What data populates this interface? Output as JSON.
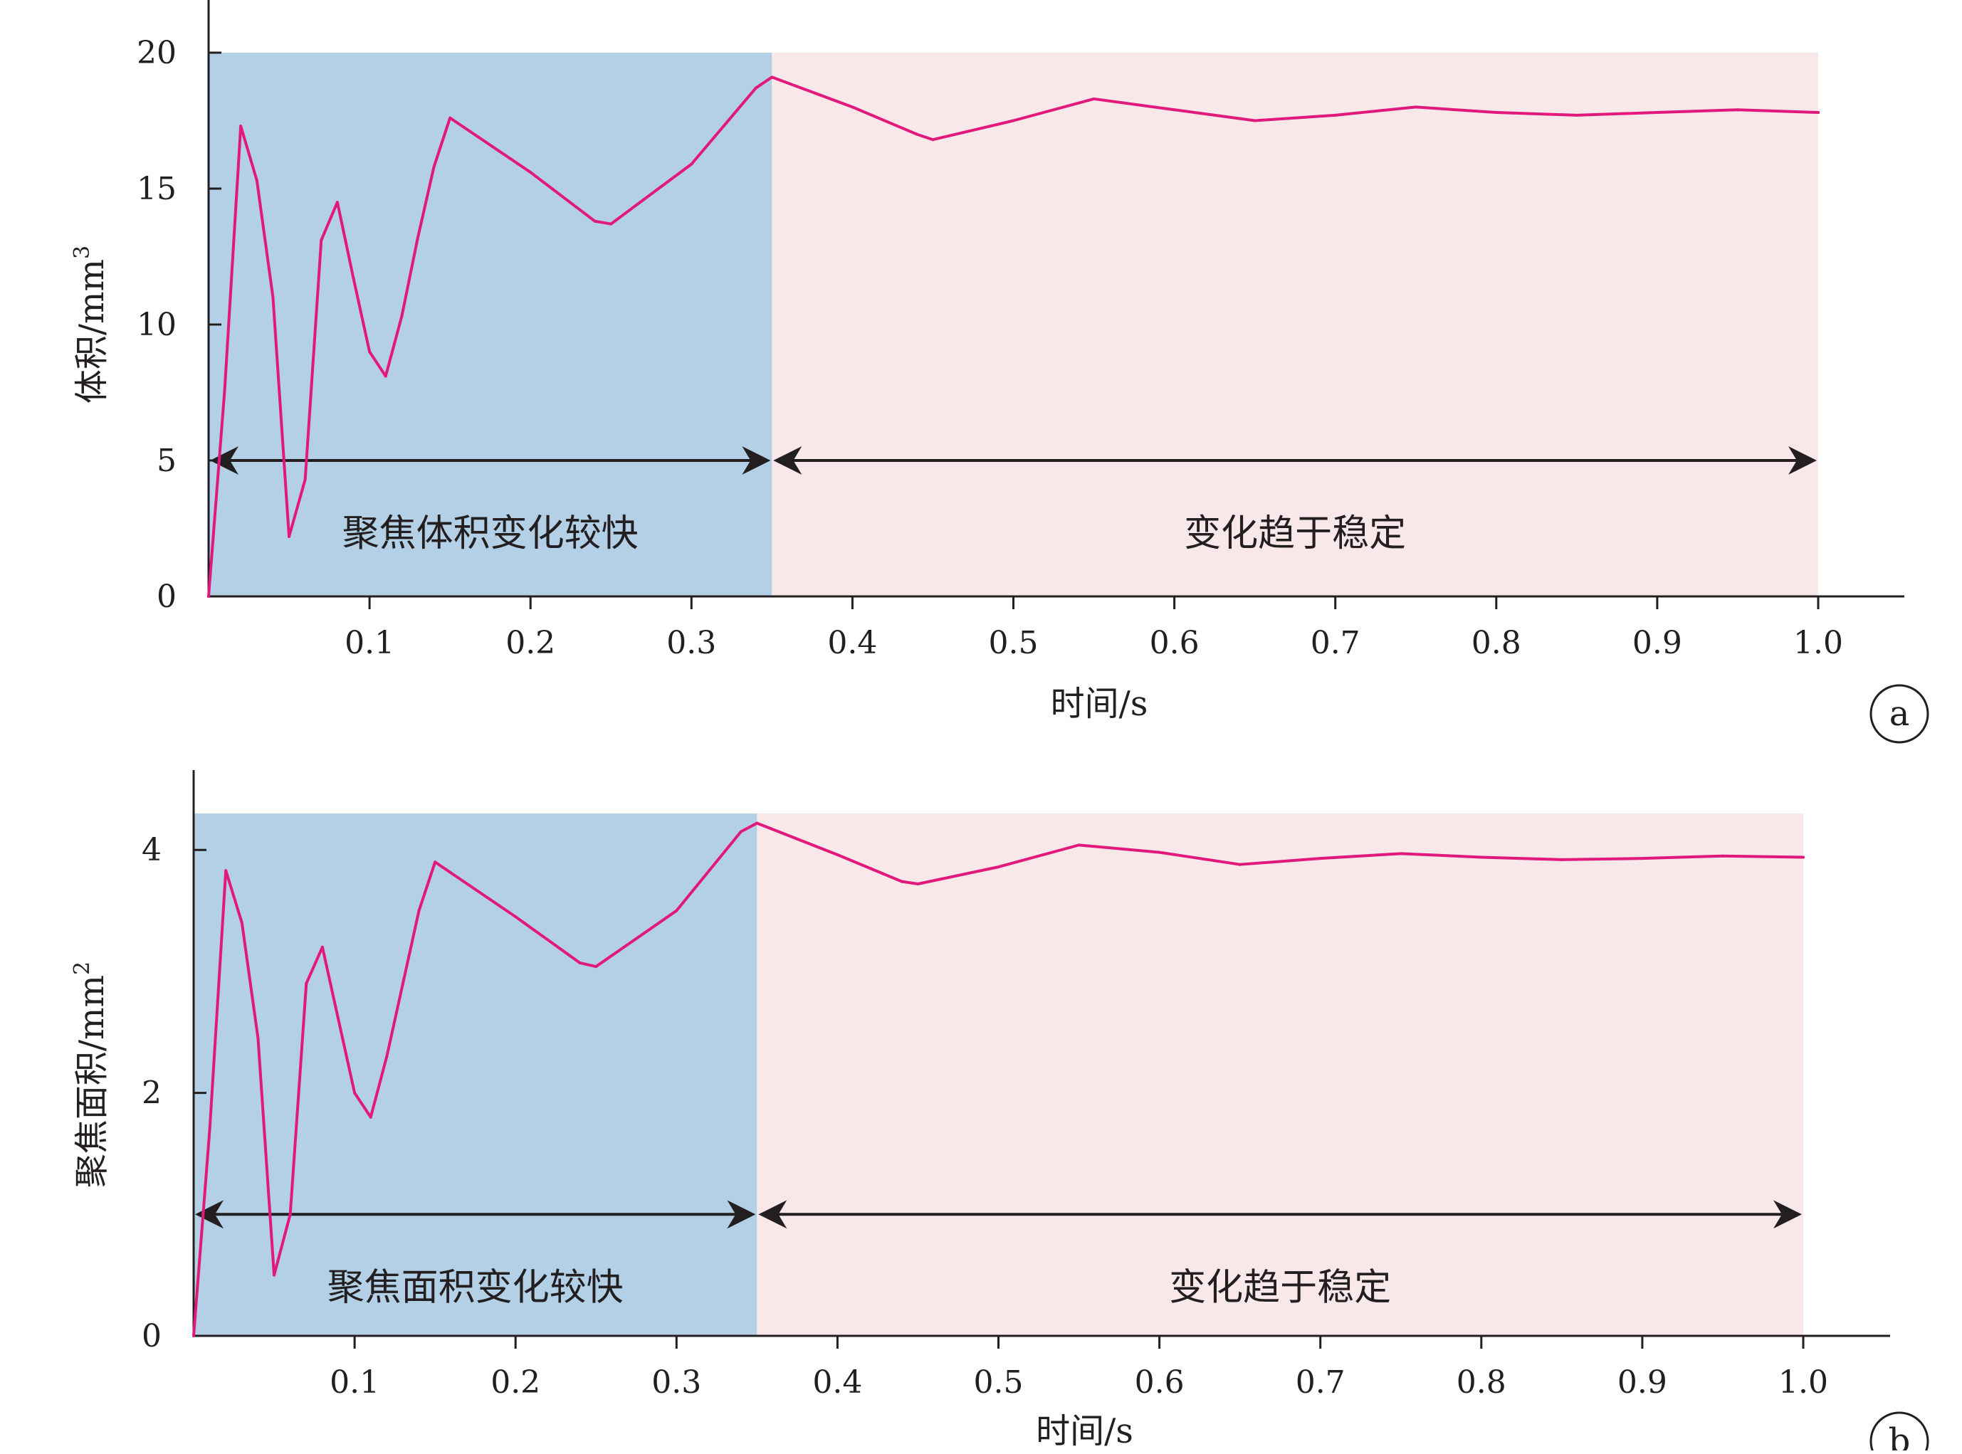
{
  "chart_data": [
    {
      "type": "line",
      "panel_label": "a",
      "xlabel": "时间/s",
      "ylabel": "体积/mm",
      "ylabel_sup": "3",
      "xlim": [
        0,
        1.05
      ],
      "ylim": [
        0,
        20
      ],
      "xticks": [
        0.1,
        0.2,
        0.3,
        0.4,
        0.5,
        0.6,
        0.7,
        0.8,
        0.9,
        1.0
      ],
      "xtick_labels": [
        "0.1",
        "0.2",
        "0.3",
        "0.4",
        "0.5",
        "0.6",
        "0.7",
        "0.8",
        "0.9",
        "1.0"
      ],
      "yticks": [
        0,
        5,
        10,
        15,
        20
      ],
      "ytick_labels": [
        "0",
        "5",
        "10",
        "15",
        "20"
      ],
      "regions": [
        {
          "x0": 0,
          "x1": 0.35,
          "color": "#b3d0e6",
          "label": "聚焦体积变化较快"
        },
        {
          "x0": 0.35,
          "x1": 1.0,
          "color": "#f8e8ea",
          "label": "变化趋于稳定"
        }
      ],
      "arrow_y": 5,
      "series_color": "#e2197c",
      "x": [
        0,
        0.01,
        0.02,
        0.03,
        0.04,
        0.05,
        0.06,
        0.07,
        0.08,
        0.09,
        0.1,
        0.11,
        0.12,
        0.13,
        0.14,
        0.15,
        0.2,
        0.24,
        0.25,
        0.3,
        0.34,
        0.35,
        0.4,
        0.44,
        0.45,
        0.5,
        0.55,
        0.6,
        0.65,
        0.7,
        0.75,
        0.8,
        0.85,
        0.9,
        0.95,
        1.0
      ],
      "values": [
        0,
        7.6,
        17.3,
        15.3,
        11.0,
        2.2,
        4.3,
        13.1,
        14.5,
        11.7,
        9.0,
        8.1,
        10.3,
        13.2,
        15.8,
        17.6,
        15.6,
        13.8,
        13.7,
        15.9,
        18.7,
        19.1,
        18.0,
        17.0,
        16.8,
        17.5,
        18.3,
        17.9,
        17.5,
        17.7,
        18.0,
        17.8,
        17.7,
        17.8,
        17.9,
        17.8
      ]
    },
    {
      "type": "line",
      "panel_label": "b",
      "xlabel": "时间/s",
      "ylabel": "聚焦面积/mm",
      "ylabel_sup": "2",
      "xlim": [
        0,
        1.05
      ],
      "ylim": [
        0,
        4.3
      ],
      "xticks": [
        0.1,
        0.2,
        0.3,
        0.4,
        0.5,
        0.6,
        0.7,
        0.8,
        0.9,
        1.0
      ],
      "xtick_labels": [
        "0.1",
        "0.2",
        "0.3",
        "0.4",
        "0.5",
        "0.6",
        "0.7",
        "0.8",
        "0.9",
        "1.0"
      ],
      "yticks": [
        0,
        2,
        4
      ],
      "ytick_labels": [
        "0",
        "2",
        "4"
      ],
      "regions": [
        {
          "x0": 0,
          "x1": 0.35,
          "color": "#b3d0e6",
          "label": "聚焦面积变化较快"
        },
        {
          "x0": 0.35,
          "x1": 1.0,
          "color": "#f8e8ea",
          "label": "变化趋于稳定"
        }
      ],
      "arrow_y": 1.0,
      "series_color": "#e2197c",
      "x": [
        0,
        0.01,
        0.02,
        0.03,
        0.04,
        0.05,
        0.06,
        0.07,
        0.08,
        0.09,
        0.1,
        0.11,
        0.12,
        0.13,
        0.14,
        0.15,
        0.2,
        0.24,
        0.25,
        0.3,
        0.34,
        0.35,
        0.4,
        0.44,
        0.45,
        0.5,
        0.55,
        0.6,
        0.65,
        0.7,
        0.75,
        0.8,
        0.85,
        0.9,
        0.95,
        1.0
      ],
      "values": [
        0,
        1.7,
        3.83,
        3.4,
        2.45,
        0.5,
        1.0,
        2.9,
        3.2,
        2.6,
        2.0,
        1.8,
        2.3,
        2.9,
        3.5,
        3.9,
        3.45,
        3.07,
        3.04,
        3.5,
        4.15,
        4.22,
        3.96,
        3.74,
        3.72,
        3.86,
        4.04,
        3.98,
        3.88,
        3.93,
        3.97,
        3.94,
        3.92,
        3.93,
        3.95,
        3.94
      ]
    }
  ]
}
